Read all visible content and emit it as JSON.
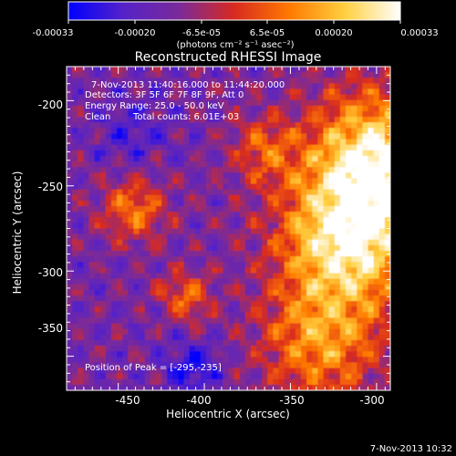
{
  "colorbar": {
    "ticks": [
      "-0.00033",
      "-0.00020",
      "-6.5e-05",
      "6.5e-05",
      "0.00020",
      "0.00033"
    ],
    "units": "(photons cm⁻² s⁻¹ asec⁻²)"
  },
  "title": "Reconstructed RHESSI Image",
  "info": {
    "time_range": "7-Nov-2013 11:40:16.000 to 11:44:20.000",
    "detectors": "Detectors: 3F 5F 6F 7F 8F 9F, Att 0",
    "energy_range": "Energy Range: 25.0 - 50.0 keV",
    "algorithm": "Clean",
    "total_counts": "Total counts: 6.01E+03"
  },
  "peak_label": "Position of Peak = [-295,-235]",
  "axes": {
    "xlabel": "Heliocentric X (arcsec)",
    "ylabel": "Heliocentric Y (arcsec)",
    "xticks": [
      "-450",
      "-400",
      "-350",
      "-300"
    ],
    "yticks": [
      "-200",
      "-250",
      "-300",
      "-350"
    ],
    "xrange": [
      -480,
      -292
    ],
    "yrange": [
      -370,
      -180
    ]
  },
  "timestamp": "7-Nov-2013 10:32",
  "colors": {
    "background": "#000000",
    "colormap": [
      "#0000ff",
      "#5522c8",
      "#7a2a9a",
      "#d82a20",
      "#ff7a00",
      "#ffd040",
      "#ffffff"
    ]
  }
}
